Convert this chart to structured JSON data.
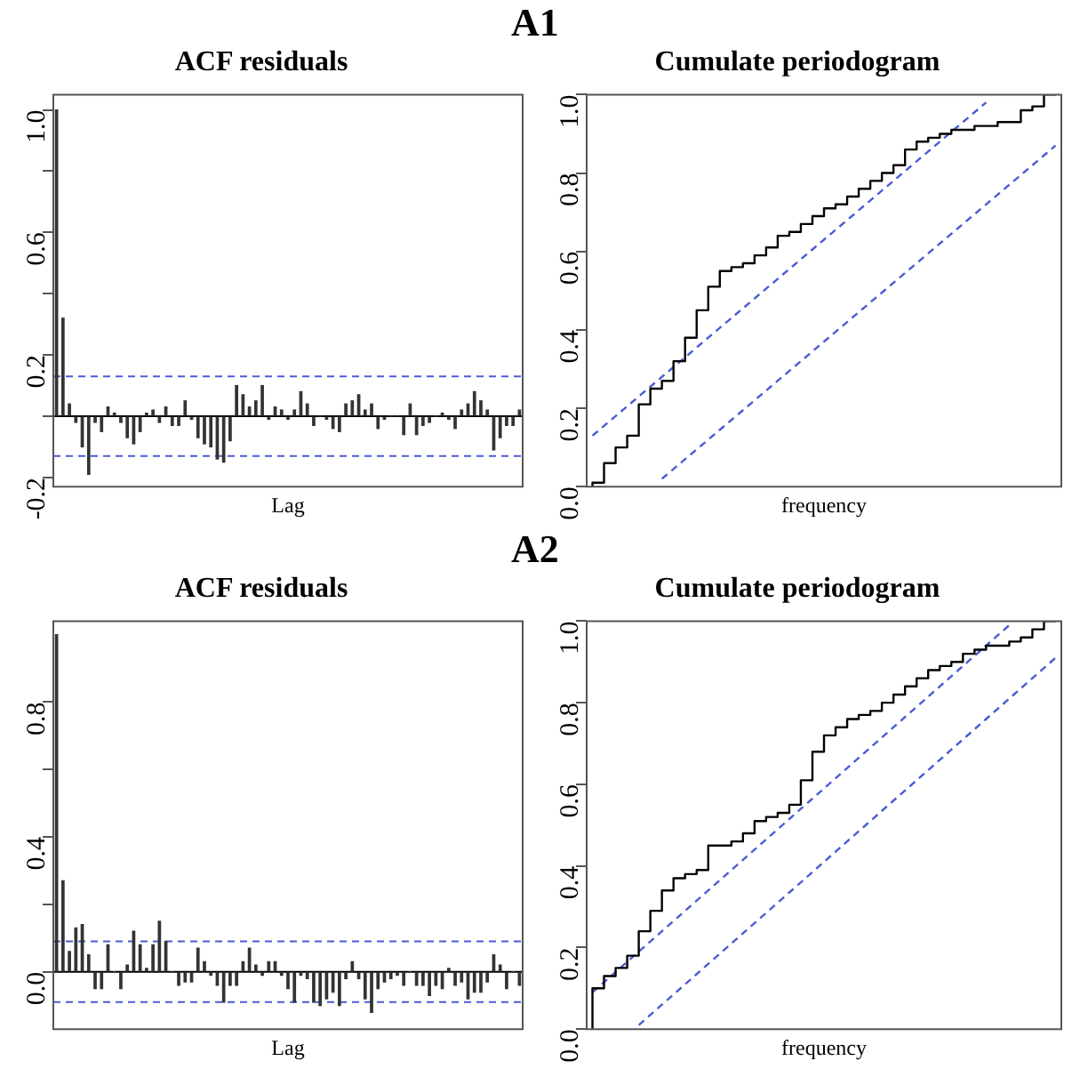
{
  "chart_data": [
    {
      "type": "bar",
      "title": "ACF residuals",
      "xlabel": "Lag",
      "annotations": [
        "A1"
      ],
      "tick_labels": "y",
      "categories": [
        null,
        null,
        null,
        null,
        null,
        null,
        null,
        null,
        null,
        null,
        null,
        null,
        null,
        null,
        null,
        null,
        null,
        null,
        null,
        null,
        null,
        null,
        null,
        null,
        null,
        null,
        null,
        null,
        null,
        null,
        null,
        null,
        null,
        null,
        null,
        null,
        null,
        null,
        null,
        null,
        null,
        null,
        null,
        null,
        null,
        null,
        null,
        null,
        null,
        null,
        null,
        null,
        null,
        null,
        null,
        null,
        null,
        null,
        null,
        null,
        null,
        null,
        null,
        null,
        null,
        null,
        null,
        null,
        null,
        null,
        null,
        null,
        null
      ],
      "series": [
        {
          "color": "#333333",
          "values": [
            1.0,
            0.32,
            0.04,
            -0.02,
            -0.1,
            -0.19,
            -0.02,
            -0.05,
            0.03,
            0.01,
            -0.02,
            -0.07,
            -0.09,
            -0.05,
            0.01,
            0.02,
            -0.02,
            0.03,
            -0.03,
            -0.03,
            0.05,
            -0.01,
            -0.07,
            -0.09,
            -0.1,
            -0.14,
            -0.15,
            -0.08,
            0.1,
            0.07,
            0.03,
            0.05,
            0.1,
            -0.01,
            0.03,
            0.02,
            -0.01,
            0.02,
            0.08,
            0.04,
            -0.03,
            0.0,
            -0.01,
            -0.04,
            -0.05,
            0.04,
            0.05,
            0.07,
            0.02,
            0.04,
            -0.04,
            -0.01,
            0.0,
            0.0,
            -0.06,
            0.04,
            -0.06,
            -0.03,
            -0.02,
            0.0,
            0.01,
            -0.01,
            -0.04,
            0.02,
            0.04,
            0.08,
            0.05,
            0.02,
            -0.11,
            -0.07,
            -0.03,
            -0.03,
            0.02
          ]
        }
      ],
      "ylim": [
        -0.23,
        1.05
      ],
      "yticks": [
        -0.2,
        {
          "value": 0,
          "label": null
        },
        0.2,
        {
          "value": 0.4,
          "label": null
        },
        0.6,
        {
          "value": 0.8,
          "label": null
        },
        {
          "value": 1.0,
          "label": "1.0"
        }
      ],
      "ref_lines": [
        {
          "axis": "y",
          "value": 0,
          "color": "#000000",
          "line_style": "solid"
        },
        {
          "axis": "y",
          "value": 0.13,
          "color": "#4b5bd6",
          "line_style": "dashed"
        },
        {
          "axis": "y",
          "value": -0.13,
          "color": "#4b5bd6",
          "line_style": "dashed"
        }
      ]
    },
    {
      "type": "step",
      "title": "Cumulate periodogram",
      "xlabel": "frequency",
      "marker": "none",
      "tick_labels": "y",
      "categories": [
        null,
        null,
        null,
        null,
        null,
        null,
        null,
        null,
        null,
        null,
        null,
        null,
        null,
        null,
        null,
        null,
        null,
        null,
        null,
        null,
        null,
        null,
        null,
        null,
        null,
        null,
        null,
        null,
        null,
        null,
        null,
        null,
        null,
        null,
        null,
        null,
        null,
        null,
        null,
        null,
        null
      ],
      "series": [
        {
          "type": "step",
          "color": "#000000",
          "values": [
            0.0,
            0.01,
            0.06,
            0.1,
            0.13,
            0.21,
            0.25,
            0.27,
            0.32,
            0.38,
            0.45,
            0.51,
            0.55,
            0.56,
            0.57,
            0.59,
            0.61,
            0.64,
            0.65,
            0.67,
            0.69,
            0.71,
            0.72,
            0.74,
            0.76,
            0.78,
            0.8,
            0.82,
            0.86,
            0.88,
            0.89,
            0.9,
            0.91,
            0.91,
            0.92,
            0.92,
            0.93,
            0.93,
            0.96,
            0.97,
            1.0
          ]
        },
        {
          "type": "line",
          "color": "#4b5bd6",
          "line_style": "dashed",
          "values": [
            0.13,
            0.155,
            0.18,
            0.205,
            0.23,
            0.255,
            0.28,
            0.305,
            0.33,
            0.355,
            0.38,
            0.405,
            0.43,
            0.455,
            0.48,
            0.505,
            0.53,
            0.555,
            0.58,
            0.605,
            0.63,
            0.655,
            0.68,
            0.705,
            0.73,
            0.755,
            0.78,
            0.805,
            0.83,
            0.855,
            0.88,
            0.905,
            0.93,
            0.955,
            0.98,
            null,
            null,
            null,
            null,
            null,
            null
          ]
        },
        {
          "type": "line",
          "color": "#4b5bd6",
          "line_style": "dashed",
          "values": [
            null,
            null,
            null,
            null,
            null,
            null,
            0.02,
            0.045,
            0.07,
            0.095,
            0.12,
            0.145,
            0.17,
            0.195,
            0.22,
            0.245,
            0.27,
            0.295,
            0.32,
            0.345,
            0.37,
            0.395,
            0.42,
            0.445,
            0.47,
            0.495,
            0.52,
            0.545,
            0.57,
            0.595,
            0.62,
            0.645,
            0.67,
            0.695,
            0.72,
            0.745,
            0.77,
            0.795,
            0.82,
            0.845,
            0.87
          ]
        }
      ],
      "ylim": [
        0,
        1
      ],
      "yticks": [
        {
          "value": 0,
          "label": "0.0"
        },
        0.2,
        0.4,
        0.6,
        0.8,
        {
          "value": 1,
          "label": "1.0"
        }
      ]
    },
    {
      "type": "bar",
      "title": "ACF residuals",
      "xlabel": "Lag",
      "annotations": [
        "A2"
      ],
      "tick_labels": "y",
      "categories": [
        null,
        null,
        null,
        null,
        null,
        null,
        null,
        null,
        null,
        null,
        null,
        null,
        null,
        null,
        null,
        null,
        null,
        null,
        null,
        null,
        null,
        null,
        null,
        null,
        null,
        null,
        null,
        null,
        null,
        null,
        null,
        null,
        null,
        null,
        null,
        null,
        null,
        null,
        null,
        null,
        null,
        null,
        null,
        null,
        null,
        null,
        null,
        null,
        null,
        null,
        null,
        null,
        null,
        null,
        null,
        null,
        null,
        null,
        null,
        null,
        null,
        null,
        null,
        null,
        null,
        null,
        null,
        null,
        null,
        null,
        null,
        null,
        null
      ],
      "series": [
        {
          "color": "#333333",
          "values": [
            1.0,
            0.27,
            0.06,
            0.13,
            0.14,
            0.05,
            -0.05,
            -0.05,
            0.08,
            0.0,
            -0.05,
            0.02,
            0.12,
            0.08,
            0.01,
            0.08,
            0.15,
            0.09,
            0.0,
            -0.04,
            -0.03,
            -0.03,
            0.07,
            0.03,
            -0.01,
            -0.04,
            -0.09,
            -0.04,
            -0.04,
            0.03,
            0.07,
            0.02,
            -0.01,
            0.03,
            0.03,
            -0.01,
            -0.05,
            -0.09,
            -0.01,
            -0.02,
            -0.09,
            -0.1,
            -0.08,
            -0.06,
            -0.1,
            -0.02,
            0.03,
            -0.02,
            -0.08,
            -0.12,
            -0.05,
            -0.03,
            -0.02,
            -0.01,
            -0.04,
            0.0,
            -0.04,
            -0.04,
            -0.07,
            -0.04,
            -0.05,
            0.01,
            -0.04,
            -0.03,
            -0.08,
            -0.06,
            -0.06,
            -0.03,
            0.05,
            0.02,
            -0.05,
            0.0,
            -0.04
          ]
        }
      ],
      "ylim": [
        -0.17,
        1.04
      ],
      "yticks": [
        {
          "value": 0,
          "label": "0.0"
        },
        {
          "value": 0.2,
          "label": null
        },
        0.4,
        {
          "value": 0.6,
          "label": null
        },
        0.8
      ],
      "ref_lines": [
        {
          "axis": "y",
          "value": 0,
          "color": "#000000",
          "line_style": "solid"
        },
        {
          "axis": "y",
          "value": 0.09,
          "color": "#4b5bd6",
          "line_style": "dashed"
        },
        {
          "axis": "y",
          "value": -0.09,
          "color": "#4b5bd6",
          "line_style": "dashed"
        }
      ]
    },
    {
      "type": "step",
      "title": "Cumulate periodogram",
      "xlabel": "frequency",
      "marker": "none",
      "tick_labels": "y",
      "categories": [
        null,
        null,
        null,
        null,
        null,
        null,
        null,
        null,
        null,
        null,
        null,
        null,
        null,
        null,
        null,
        null,
        null,
        null,
        null,
        null,
        null,
        null,
        null,
        null,
        null,
        null,
        null,
        null,
        null,
        null,
        null,
        null,
        null,
        null,
        null,
        null,
        null,
        null,
        null,
        null,
        null
      ],
      "series": [
        {
          "type": "step",
          "color": "#000000",
          "values": [
            0.0,
            0.1,
            0.13,
            0.15,
            0.18,
            0.24,
            0.29,
            0.34,
            0.37,
            0.38,
            0.39,
            0.45,
            0.45,
            0.46,
            0.48,
            0.51,
            0.52,
            0.53,
            0.55,
            0.61,
            0.68,
            0.72,
            0.74,
            0.76,
            0.77,
            0.78,
            0.8,
            0.82,
            0.84,
            0.86,
            0.88,
            0.89,
            0.9,
            0.92,
            0.93,
            0.94,
            0.94,
            0.95,
            0.96,
            0.98,
            1.0
          ]
        },
        {
          "type": "line",
          "color": "#4b5bd6",
          "line_style": "dashed",
          "values": [
            0.09,
            0.115,
            0.14,
            0.165,
            0.19,
            0.215,
            0.24,
            0.265,
            0.29,
            0.315,
            0.34,
            0.365,
            0.39,
            0.415,
            0.44,
            0.465,
            0.49,
            0.515,
            0.54,
            0.565,
            0.59,
            0.615,
            0.64,
            0.665,
            0.69,
            0.715,
            0.74,
            0.765,
            0.79,
            0.815,
            0.84,
            0.865,
            0.89,
            0.915,
            0.94,
            0.965,
            0.99,
            null,
            null,
            null,
            null
          ]
        },
        {
          "type": "line",
          "color": "#4b5bd6",
          "line_style": "dashed",
          "values": [
            null,
            null,
            null,
            null,
            0.01,
            0.035,
            0.06,
            0.085,
            0.11,
            0.135,
            0.16,
            0.185,
            0.21,
            0.235,
            0.26,
            0.285,
            0.31,
            0.335,
            0.36,
            0.385,
            0.41,
            0.435,
            0.46,
            0.485,
            0.51,
            0.535,
            0.56,
            0.585,
            0.61,
            0.635,
            0.66,
            0.685,
            0.71,
            0.735,
            0.76,
            0.785,
            0.81,
            0.835,
            0.86,
            0.885,
            0.91
          ]
        }
      ],
      "ylim": [
        0,
        1
      ],
      "yticks": [
        {
          "value": 0,
          "label": "0.0"
        },
        0.2,
        0.4,
        0.6,
        0.8,
        {
          "value": 1,
          "label": "1.0"
        }
      ]
    }
  ]
}
